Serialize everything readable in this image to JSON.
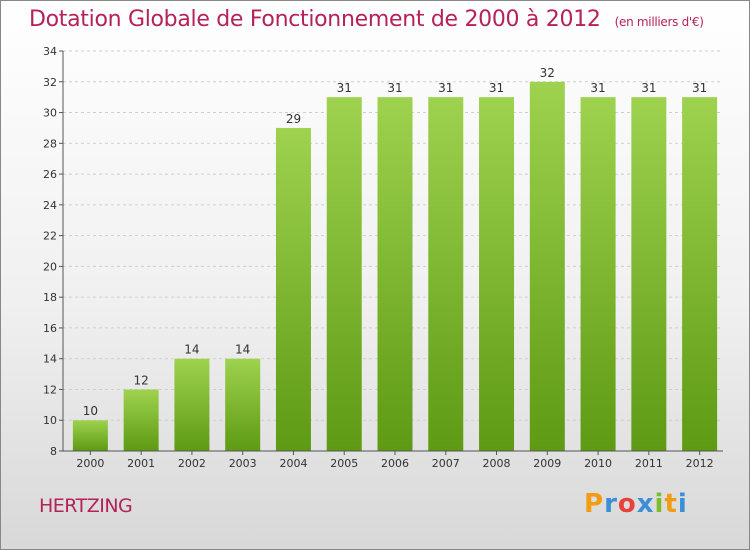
{
  "title": "Dotation Globale de Fonctionnement de 2000 à 2012",
  "subtitle": "(en milliers d'€)",
  "commune": "HERTZING",
  "logo": {
    "text": "Proxiti",
    "letters": [
      "P",
      "r",
      "o",
      "x",
      "i",
      "t",
      "i"
    ],
    "colors": [
      "#f39c12",
      "#3b8ed8",
      "#e8403a",
      "#3b8ed8",
      "#7cbd2e",
      "#f39c12",
      "#3b8ed8"
    ]
  },
  "colors": {
    "accent": "#b5215a",
    "bar_top": "#9ed24f",
    "bar_bottom": "#5e9a14",
    "axis": "#555555",
    "grid": "#cfcfcf"
  },
  "chart_data": {
    "type": "bar",
    "title": "Dotation Globale de Fonctionnement de 2000 à 2012",
    "subtitle": "(en milliers d'€)",
    "xlabel": "",
    "ylabel": "",
    "categories": [
      "2000",
      "2001",
      "2002",
      "2003",
      "2004",
      "2005",
      "2006",
      "2007",
      "2008",
      "2009",
      "2010",
      "2011",
      "2012"
    ],
    "values": [
      10,
      12,
      14,
      14,
      29,
      31,
      31,
      31,
      31,
      32,
      31,
      31,
      31
    ],
    "ylim": [
      8,
      34
    ],
    "yticks": [
      8,
      10,
      12,
      14,
      16,
      18,
      20,
      22,
      24,
      26,
      28,
      30,
      32,
      34
    ],
    "grid": true
  }
}
